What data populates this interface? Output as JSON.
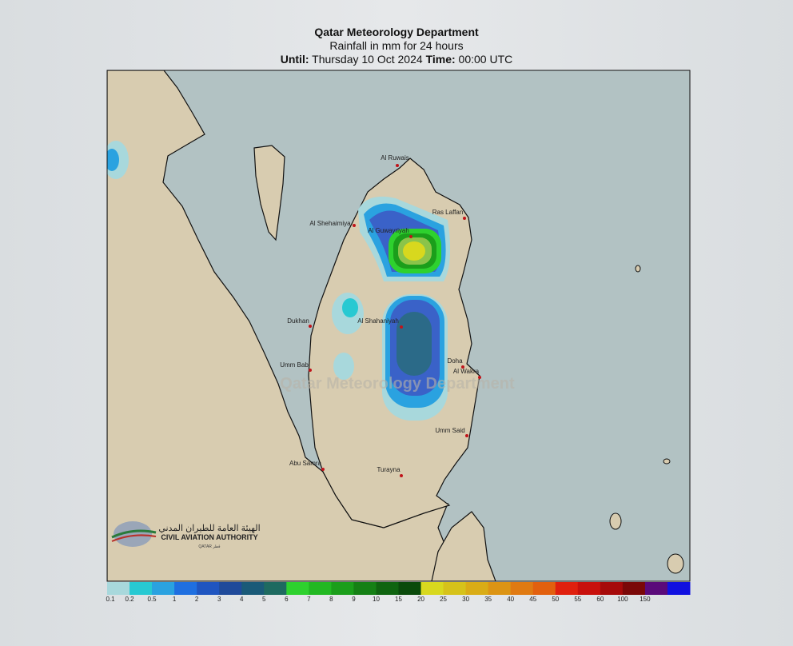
{
  "header": {
    "title": "Qatar Meteorology Department",
    "subtitle": "Rainfall in mm for 24 hours",
    "until_label": "Until:",
    "date": "Thursday 10 Oct 2024",
    "time_label": "Time:",
    "time": "00:00 UTC"
  },
  "map": {
    "watermark": "Qatar Meteorology Department",
    "places": [
      "Al Ruwais",
      "Ras Laffan",
      "Al Shehaimiya",
      "Al Guwayriyah",
      "Dukhan",
      "Al Shahaniyah",
      "Doha",
      "Al Wakra",
      "Umm Bab",
      "Umm Said",
      "Abu Samra",
      "Turayna"
    ]
  },
  "logo": {
    "arabic": "الهيئة العامة للطيران المدني",
    "english": "CIVIL AVIATION AUTHORITY",
    "country": "QATAR قطر"
  },
  "scale": {
    "labels": [
      0.1,
      0.2,
      0.5,
      1,
      2,
      3,
      4,
      5,
      6,
      7,
      8,
      9,
      10,
      15,
      20,
      25,
      30,
      35,
      40,
      45,
      50,
      55,
      60,
      100,
      150
    ],
    "colors": [
      "#a8d8dc",
      "#27c9d2",
      "#2aa2e0",
      "#1f6fe0",
      "#1f55c0",
      "#1f4a9a",
      "#1a5a78",
      "#1e6a60",
      "#2ed12e",
      "#22b822",
      "#1b9e1b",
      "#158015",
      "#0f6410",
      "#0a4a0b",
      "#d8d81e",
      "#d6c21a",
      "#d9ac16",
      "#dc9414",
      "#e07a12",
      "#e2600e",
      "#e0200e",
      "#c8100c",
      "#a60a0a",
      "#7a0808",
      "#5a0a7a",
      "#1010e0"
    ]
  }
}
